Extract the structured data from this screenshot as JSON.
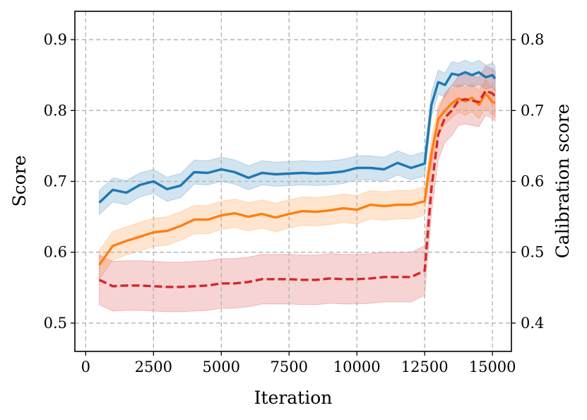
{
  "chart_data": {
    "type": "line",
    "xlabel": "Iteration",
    "ylabel": "Score",
    "ylabel_right": "Calibration score",
    "xlim": [
      -400,
      15700
    ],
    "ylim": [
      0.46,
      0.94
    ],
    "ylim_right": [
      0.36,
      0.84
    ],
    "xticks": [
      0,
      2500,
      5000,
      7500,
      10000,
      12500,
      15000
    ],
    "yticks": [
      0.5,
      0.6,
      0.7,
      0.8,
      0.9
    ],
    "yticks_right": [
      0.4,
      0.5,
      0.6,
      0.7,
      0.8
    ],
    "xtick_labels": [
      "0",
      "2500",
      "5000",
      "7500",
      "10000",
      "12500",
      "15000"
    ],
    "ytick_labels": [
      "0.5",
      "0.6",
      "0.7",
      "0.8",
      "0.9"
    ],
    "ytick_labels_right": [
      "0.4",
      "0.5",
      "0.6",
      "0.7",
      "0.8"
    ],
    "grid": true,
    "series": [
      {
        "axis": "left",
        "color": "#1f77b4",
        "style": "solid",
        "band": 0.017,
        "x": [
          500,
          1000,
          1500,
          2000,
          2500,
          3000,
          3500,
          4000,
          4500,
          5000,
          5500,
          6000,
          6500,
          7000,
          7500,
          8000,
          8500,
          9000,
          9500,
          10000,
          10500,
          11000,
          11500,
          12000,
          12500,
          12750,
          13000,
          13250,
          13500,
          13750,
          14000,
          14250,
          14500,
          14750,
          15000,
          15100
        ],
        "y": [
          0.67,
          0.688,
          0.684,
          0.695,
          0.7,
          0.689,
          0.694,
          0.713,
          0.712,
          0.717,
          0.713,
          0.705,
          0.712,
          0.71,
          0.711,
          0.712,
          0.711,
          0.712,
          0.714,
          0.719,
          0.719,
          0.717,
          0.726,
          0.719,
          0.725,
          0.808,
          0.84,
          0.836,
          0.852,
          0.85,
          0.854,
          0.85,
          0.854,
          0.847,
          0.85,
          0.845
        ]
      },
      {
        "axis": "left",
        "color": "#ff7f0e",
        "style": "solid",
        "band": 0.02,
        "x": [
          500,
          1000,
          1500,
          2000,
          2500,
          3000,
          3500,
          4000,
          4500,
          5000,
          5500,
          6000,
          6500,
          7000,
          7500,
          8000,
          8500,
          9000,
          9500,
          10000,
          10500,
          11000,
          11500,
          12000,
          12500,
          12750,
          13000,
          13250,
          13500,
          13750,
          14000,
          14250,
          14500,
          14750,
          15000,
          15100
        ],
        "y": [
          0.582,
          0.609,
          0.616,
          0.622,
          0.628,
          0.63,
          0.637,
          0.646,
          0.646,
          0.652,
          0.655,
          0.65,
          0.654,
          0.649,
          0.654,
          0.658,
          0.657,
          0.659,
          0.662,
          0.66,
          0.667,
          0.665,
          0.667,
          0.667,
          0.672,
          0.74,
          0.788,
          0.8,
          0.81,
          0.817,
          0.813,
          0.818,
          0.808,
          0.824,
          0.812,
          0.811
        ]
      },
      {
        "axis": "right",
        "color": "#d62728",
        "style": "dashed",
        "band": 0.035,
        "x": [
          500,
          1000,
          1500,
          2000,
          2500,
          3000,
          3500,
          4000,
          4500,
          5000,
          5500,
          6000,
          6500,
          7000,
          7500,
          8000,
          8500,
          9000,
          9500,
          10000,
          10500,
          11000,
          11500,
          12000,
          12500,
          12750,
          13000,
          13250,
          13500,
          13750,
          14000,
          14250,
          14500,
          14750,
          15000,
          15100
        ],
        "y": [
          0.461,
          0.452,
          0.453,
          0.453,
          0.452,
          0.451,
          0.451,
          0.452,
          0.453,
          0.456,
          0.456,
          0.458,
          0.462,
          0.462,
          0.462,
          0.461,
          0.461,
          0.463,
          0.462,
          0.462,
          0.463,
          0.465,
          0.465,
          0.465,
          0.474,
          0.59,
          0.666,
          0.69,
          0.7,
          0.714,
          0.716,
          0.714,
          0.712,
          0.728,
          0.724,
          0.72
        ]
      }
    ]
  }
}
